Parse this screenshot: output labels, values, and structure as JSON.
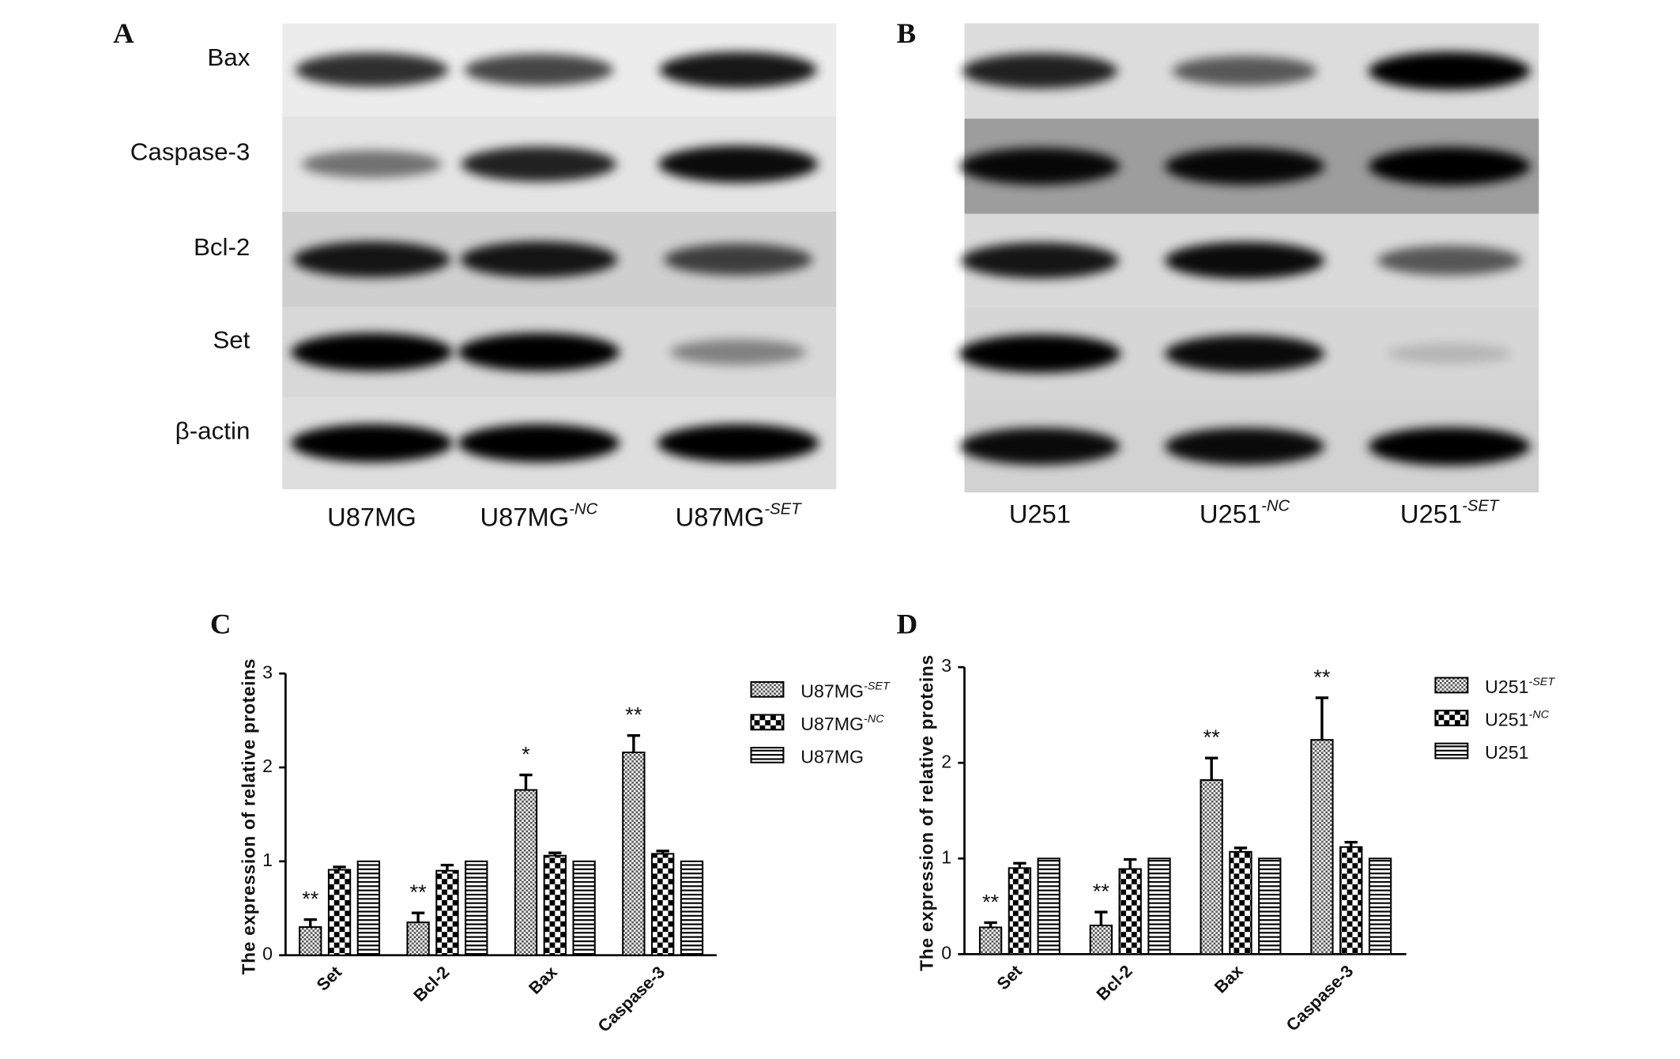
{
  "blots": [
    {
      "panel": "A",
      "proteins": [
        "Bax",
        "Caspase-3",
        "Bcl-2",
        "Set",
        "β-actin"
      ],
      "lanes": [
        {
          "name": "U87MG"
        },
        {
          "name": "U87MG",
          "superscript": "-NC"
        },
        {
          "name": "U87MG",
          "superscript": "-SET"
        }
      ]
    },
    {
      "panel": "B",
      "lanes": [
        {
          "name": "U251"
        },
        {
          "name": "U251",
          "superscript": "-NC"
        },
        {
          "name": "U251",
          "superscript": "-SET"
        }
      ]
    }
  ],
  "chart_data": [
    {
      "type": "bar",
      "panel": "C",
      "ylabel": "The expression of relative proteins",
      "categories": [
        "Set",
        "Bcl-2",
        "Bax",
        "Caspase-3"
      ],
      "ylim": [
        0,
        3
      ],
      "yticks": [
        0,
        1,
        2,
        3
      ],
      "series": [
        {
          "name": "U87MG",
          "name_superscript": "-SET",
          "pattern": "dots",
          "color": "#000000",
          "values": [
            0.3,
            0.35,
            1.76,
            2.16
          ],
          "errors": [
            0.08,
            0.1,
            0.16,
            0.18
          ],
          "annotations": [
            "**",
            "**",
            "*",
            "**"
          ]
        },
        {
          "name": "U87MG",
          "name_superscript": "-NC",
          "pattern": "checker",
          "color": "#000000",
          "values": [
            0.91,
            0.9,
            1.06,
            1.08
          ],
          "errors": [
            0.03,
            0.06,
            0.03,
            0.03
          ]
        },
        {
          "name": "U87MG",
          "pattern": "stripes",
          "color": "#000000",
          "values": [
            1,
            1,
            1,
            1
          ]
        }
      ]
    },
    {
      "type": "bar",
      "panel": "D",
      "ylabel": "The expression of relative proteins",
      "categories": [
        "Set",
        "Bcl-2",
        "Bax",
        "Caspase-3"
      ],
      "ylim": [
        0,
        3
      ],
      "yticks": [
        0,
        1,
        2,
        3
      ],
      "series": [
        {
          "name": "U251",
          "name_superscript": "-SET",
          "pattern": "dots",
          "color": "#000000",
          "values": [
            0.28,
            0.3,
            1.82,
            2.24
          ],
          "errors": [
            0.05,
            0.14,
            0.23,
            0.44
          ],
          "annotations": [
            "**",
            "**",
            "**",
            "**"
          ]
        },
        {
          "name": "U251",
          "name_superscript": "-NC",
          "pattern": "checker",
          "color": "#000000",
          "values": [
            0.9,
            0.89,
            1.07,
            1.12
          ],
          "errors": [
            0.05,
            0.1,
            0.04,
            0.05
          ]
        },
        {
          "name": "U251",
          "pattern": "stripes",
          "color": "#000000",
          "values": [
            1,
            1,
            1,
            1
          ]
        }
      ]
    }
  ]
}
